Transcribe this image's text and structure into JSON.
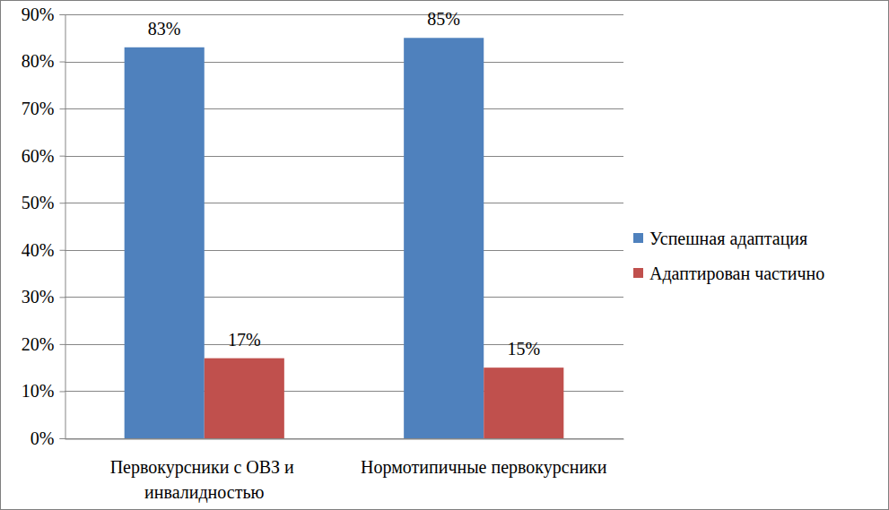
{
  "chart_data": {
    "type": "bar",
    "categories": [
      "Первокурсники с ОВЗ и инвалидностью",
      "Нормотипичные первокурсники"
    ],
    "series": [
      {
        "name": "Успешная адаптация",
        "color": "#4f81bd",
        "values": [
          83,
          85
        ],
        "value_labels": [
          "83%",
          "85%"
        ]
      },
      {
        "name": "Адаптирован частично",
        "color": "#c0504d",
        "values": [
          17,
          15
        ],
        "value_labels": [
          "17%",
          "15%"
        ]
      }
    ],
    "ylim": [
      0,
      90
    ],
    "yticks": [
      {
        "value": 0,
        "label": "0%"
      },
      {
        "value": 10,
        "label": "10%"
      },
      {
        "value": 20,
        "label": "20%"
      },
      {
        "value": 30,
        "label": "30%"
      },
      {
        "value": 40,
        "label": "40%"
      },
      {
        "value": 50,
        "label": "50%"
      },
      {
        "value": 60,
        "label": "60%"
      },
      {
        "value": 70,
        "label": "70%"
      },
      {
        "value": 80,
        "label": "80%"
      },
      {
        "value": 90,
        "label": "90%"
      }
    ],
    "grid": true,
    "legend": "right",
    "data_labels": true
  }
}
